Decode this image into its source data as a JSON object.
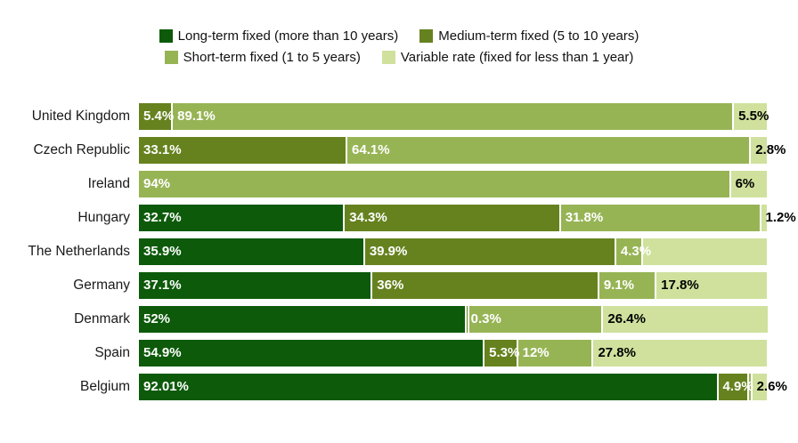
{
  "chart_data": {
    "type": "bar",
    "variant": "horizontal-stacked",
    "unit": "%",
    "xlim": [
      0,
      100
    ],
    "grid": false,
    "legend_position": "top-center",
    "axis_labels_visible": false,
    "series_colors": {
      "long": "#0c5a0a",
      "medium": "#66821f",
      "short": "#97b455",
      "variable": "#cfe19d"
    },
    "segment_label_text_colors": {
      "long": "#ffffff",
      "medium": "#ffffff",
      "short": "#ffffff",
      "variable": "#000000"
    },
    "legend": [
      {
        "series": "long",
        "label": "Long-term fixed (more than 10 years)"
      },
      {
        "series": "medium",
        "label": "Medium-term fixed (5 to 10 years)"
      },
      {
        "series": "short",
        "label": "Short-term fixed (1 to 5 years)"
      },
      {
        "series": "variable",
        "label": "Variable rate (fixed for less than 1 year)"
      }
    ],
    "rows": [
      {
        "country": "United Kingdom",
        "segments": [
          {
            "series": "medium",
            "value": 5.4,
            "label": "5.4%"
          },
          {
            "series": "short",
            "value": 89.1,
            "label": "89.1%"
          },
          {
            "series": "variable",
            "value": 5.5,
            "label": "5.5%"
          }
        ]
      },
      {
        "country": "Czech Republic",
        "segments": [
          {
            "series": "medium",
            "value": 33.1,
            "label": "33.1%"
          },
          {
            "series": "short",
            "value": 64.1,
            "label": "64.1%"
          },
          {
            "series": "variable",
            "value": 2.8,
            "label": "2.8%"
          }
        ]
      },
      {
        "country": "Ireland",
        "segments": [
          {
            "series": "short",
            "value": 94,
            "label": "94%"
          },
          {
            "series": "variable",
            "value": 6,
            "label": "6%"
          }
        ]
      },
      {
        "country": "Hungary",
        "segments": [
          {
            "series": "long",
            "value": 32.7,
            "label": "32.7%"
          },
          {
            "series": "medium",
            "value": 34.3,
            "label": "34.3%"
          },
          {
            "series": "short",
            "value": 31.8,
            "label": "31.8%"
          },
          {
            "series": "variable",
            "value": 1.2,
            "label": "1.2%"
          }
        ]
      },
      {
        "country": "The Netherlands",
        "segments": [
          {
            "series": "long",
            "value": 35.9,
            "label": "35.9%"
          },
          {
            "series": "medium",
            "value": 39.9,
            "label": "39.9%"
          },
          {
            "series": "short",
            "value": 4.3,
            "label": "4.3%"
          },
          {
            "series": "variable",
            "value": 19.9,
            "label": ""
          }
        ]
      },
      {
        "country": "Germany",
        "segments": [
          {
            "series": "long",
            "value": 37.1,
            "label": "37.1%"
          },
          {
            "series": "medium",
            "value": 36,
            "label": "36%"
          },
          {
            "series": "short",
            "value": 9.1,
            "label": "9.1%"
          },
          {
            "series": "variable",
            "value": 17.8,
            "label": "17.8%"
          }
        ]
      },
      {
        "country": "Denmark",
        "segments": [
          {
            "series": "long",
            "value": 52,
            "label": "52%"
          },
          {
            "series": "medium",
            "value": 0.3,
            "label": "0.3%"
          },
          {
            "series": "short",
            "value": 21.3,
            "label": ""
          },
          {
            "series": "variable",
            "value": 26.4,
            "label": "26.4%"
          }
        ]
      },
      {
        "country": "Spain",
        "segments": [
          {
            "series": "long",
            "value": 54.9,
            "label": "54.9%"
          },
          {
            "series": "medium",
            "value": 5.3,
            "label": "5.3%"
          },
          {
            "series": "short",
            "value": 12,
            "label": "12%"
          },
          {
            "series": "variable",
            "value": 27.8,
            "label": "27.8%"
          }
        ]
      },
      {
        "country": "Belgium",
        "segments": [
          {
            "series": "long",
            "value": 92.01,
            "label": "92.01%"
          },
          {
            "series": "medium",
            "value": 4.9,
            "label": "4.9%"
          },
          {
            "series": "short",
            "value": 0.49,
            "label": ""
          },
          {
            "series": "variable",
            "value": 2.6,
            "label": "2.6%"
          }
        ]
      }
    ]
  }
}
